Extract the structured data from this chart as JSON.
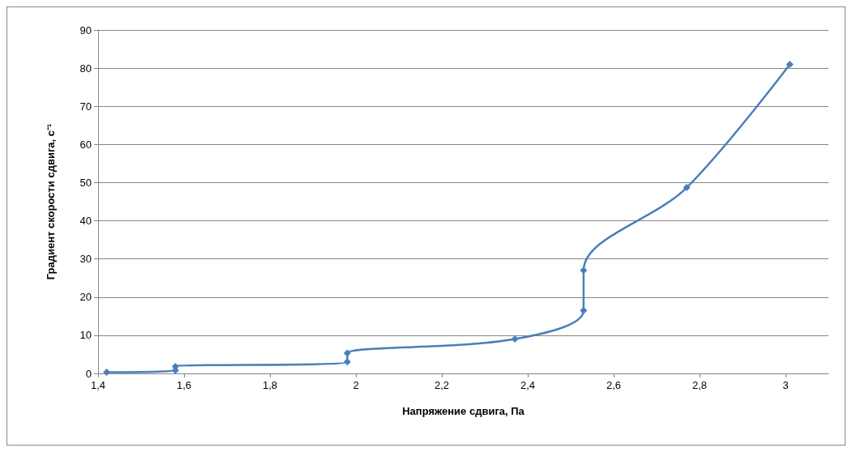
{
  "chart_data": {
    "type": "line",
    "xlabel": "Напряжение сдвига, Па",
    "ylabel": "Градиент скорости сдвига, с⁻¹",
    "x": [
      1.42,
      1.58,
      1.58,
      1.98,
      1.98,
      2.37,
      2.53,
      2.53,
      2.77,
      3.01
    ],
    "series": [
      {
        "color": "#4a7ebb",
        "values": [
          0.3,
          0.8,
          1.8,
          3,
          5.3,
          9,
          16.5,
          27,
          48.7,
          81
        ]
      }
    ],
    "xlim": [
      1.4,
      3.1
    ],
    "xticks": [
      {
        "value": 1.4,
        "label": "1,4"
      },
      {
        "value": 1.6,
        "label": "1,6"
      },
      {
        "value": 1.8,
        "label": "1,8"
      },
      2,
      {
        "value": 2.2,
        "label": "2,2"
      },
      {
        "value": 2.4,
        "label": "2,4"
      },
      {
        "value": 2.6,
        "label": "2,6"
      },
      {
        "value": 2.8,
        "label": "2,8"
      },
      3
    ],
    "ylim": [
      0,
      90
    ],
    "yticks": [
      0,
      10,
      20,
      30,
      40,
      50,
      60,
      70,
      80,
      90
    ],
    "grid": "y",
    "marker": "diamond",
    "line_style": "solid"
  }
}
